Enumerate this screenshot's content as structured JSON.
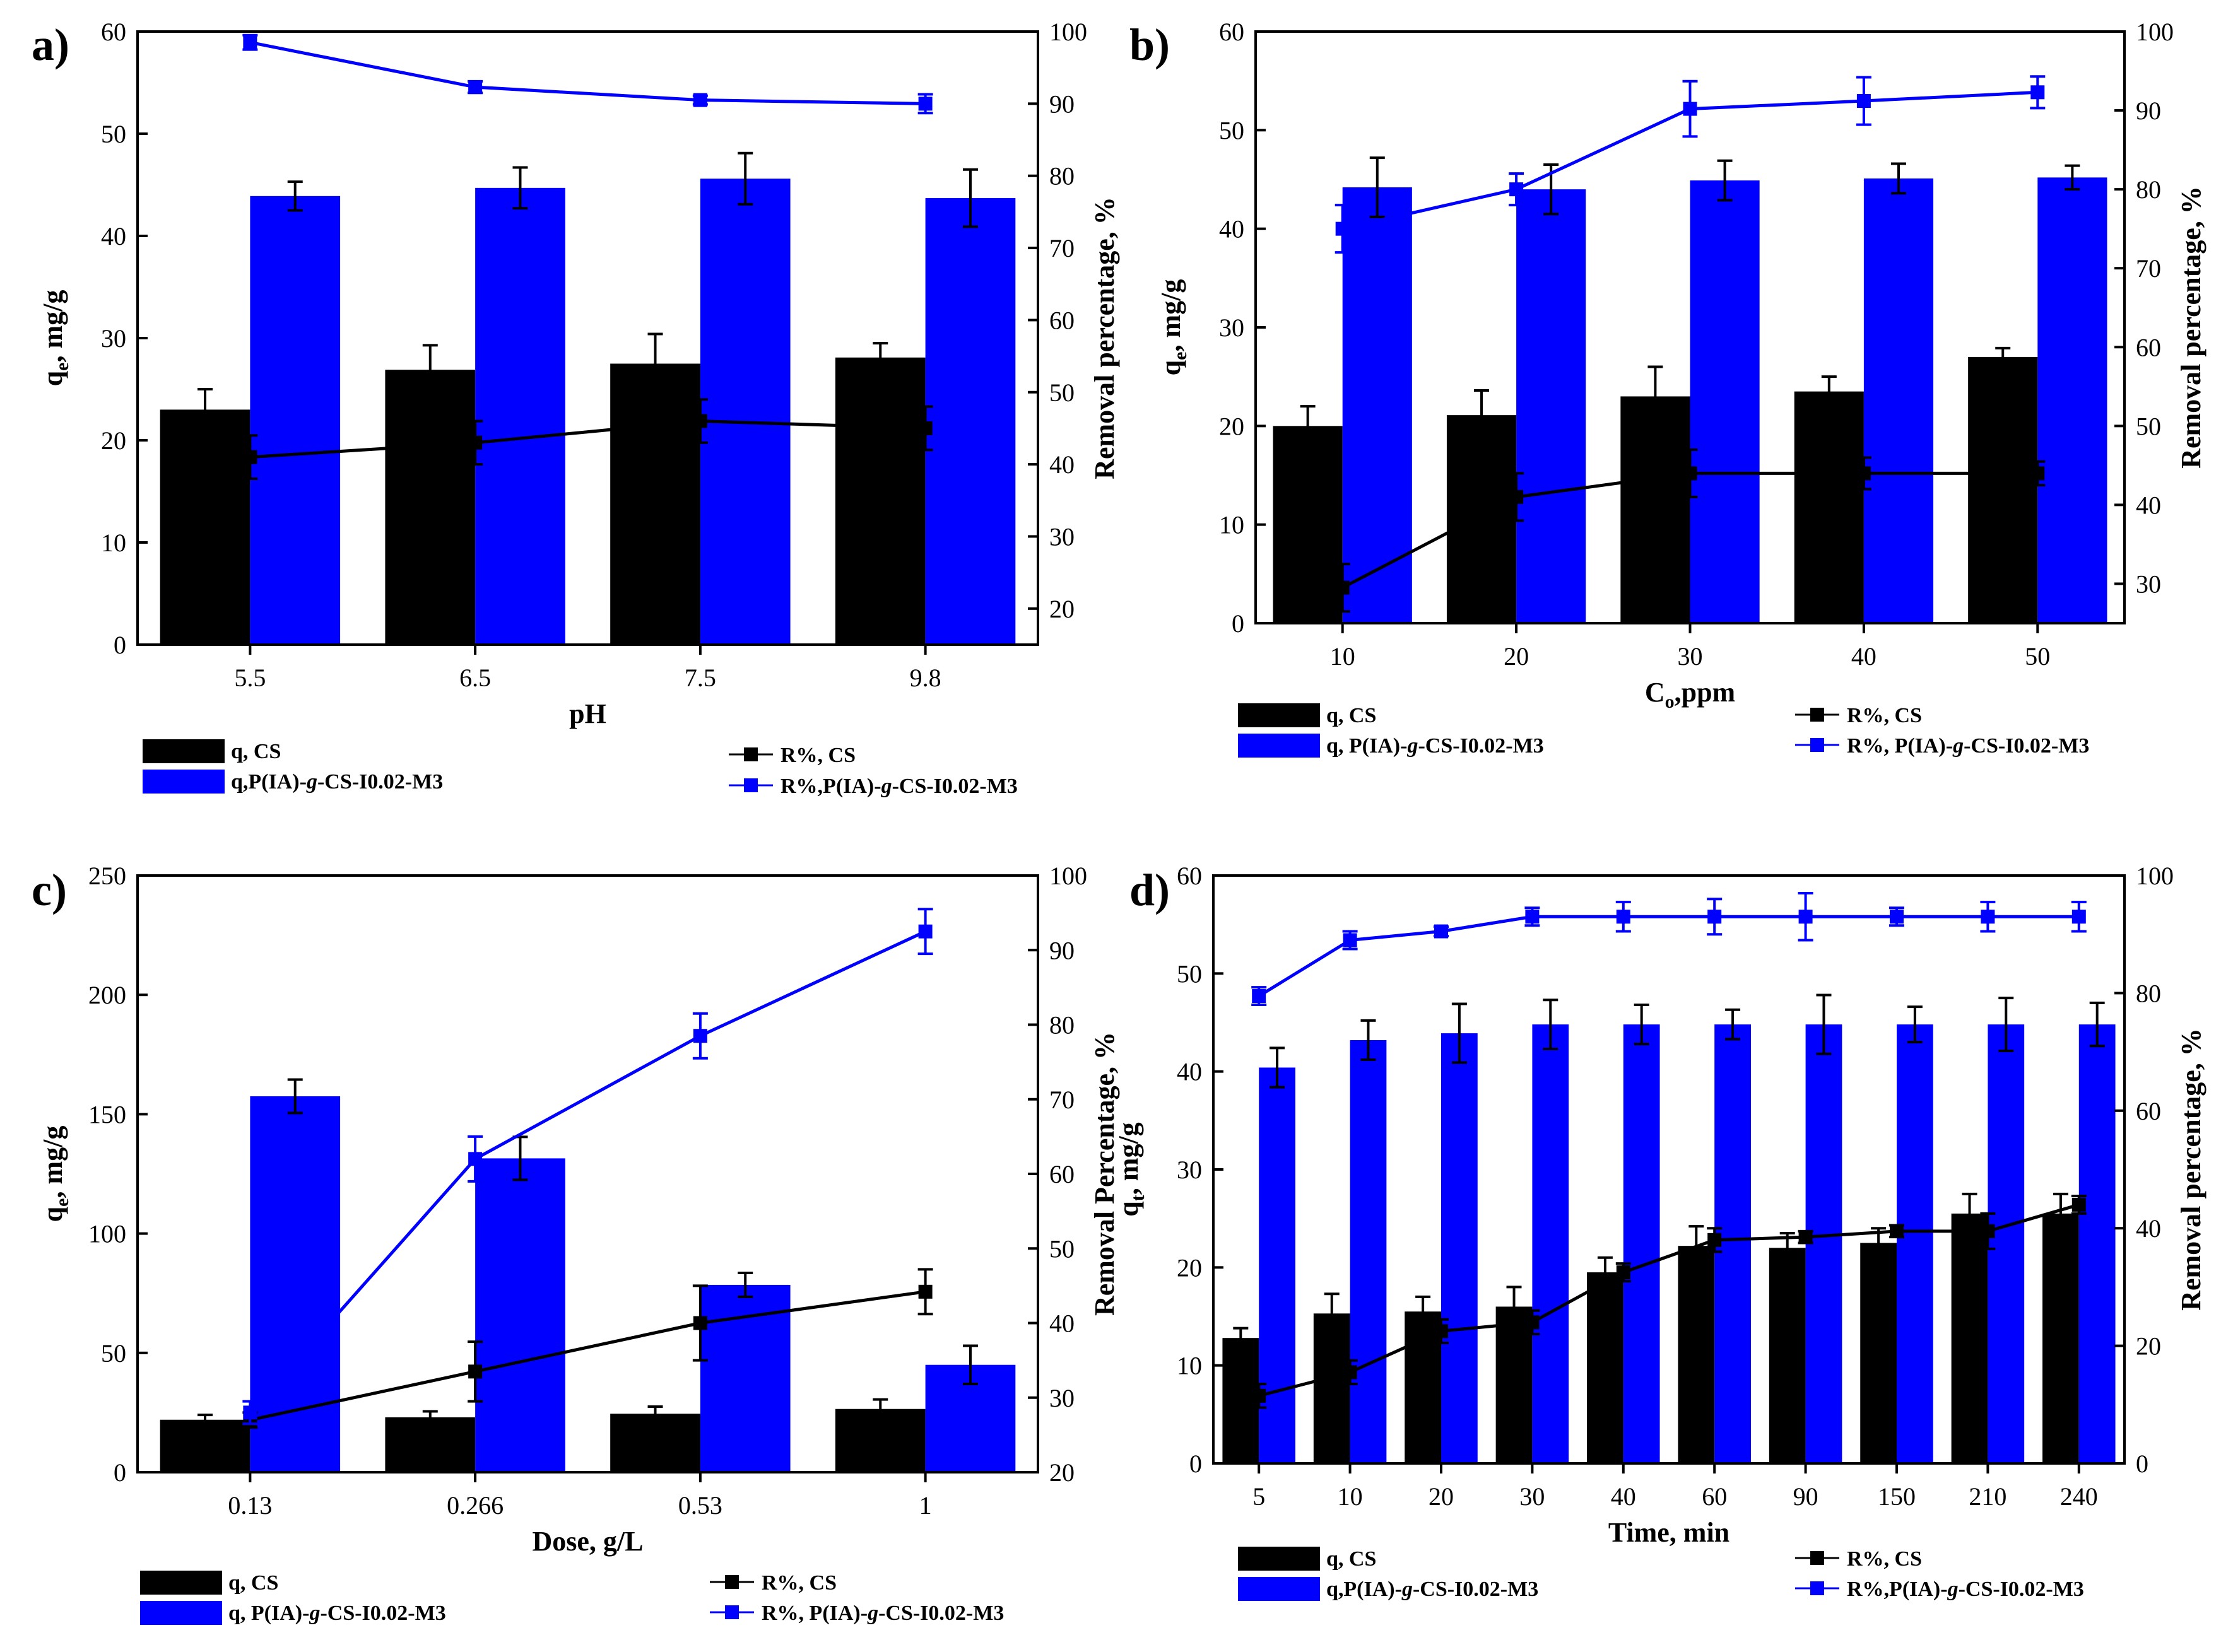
{
  "colors": {
    "cs": "#000000",
    "grafted": "#0000ff"
  },
  "legend_labels": {
    "q_cs": "q, CS",
    "q_grafted_prefix": "q, P(IA)-",
    "q_grafted_prefix_nospace": "q,P(IA)-",
    "r_cs": "R%, CS",
    "r_grafted_prefix": "R%, P(IA)-",
    "r_grafted_prefix_nospace": "R%,P(IA)-",
    "g_italic": "g",
    "grafted_suffix": "-CS-I0.02-M3"
  },
  "chart_data": [
    {
      "panel": "a)",
      "type": "bar+line",
      "xlabel": "pH",
      "ylabel_left": "q",
      "ylabel_left_sub": "e",
      "ylabel_left_tail": ", mg/g",
      "ylabel_right": "Removal percentage, %",
      "categories": [
        "5.5",
        "6.5",
        "7.5",
        "9.8"
      ],
      "yleft_lim": [
        0,
        60
      ],
      "yleft_ticks": [
        0,
        10,
        20,
        30,
        40,
        50,
        60
      ],
      "yright_lim": [
        15,
        100
      ],
      "yright_ticks": [
        20,
        30,
        40,
        50,
        60,
        70,
        80,
        90,
        100
      ],
      "bars": [
        {
          "name": "q, CS",
          "values": [
            23.0,
            26.9,
            27.5,
            28.1
          ],
          "errors": [
            2.0,
            2.4,
            2.9,
            1.4
          ]
        },
        {
          "name": "q,P(IA)-g-CS-I0.02-M3",
          "values": [
            43.9,
            44.7,
            45.6,
            43.7
          ],
          "errors": [
            1.4,
            2.0,
            2.5,
            2.8
          ]
        }
      ],
      "lines": [
        {
          "name": "R%, CS",
          "values": [
            41.0,
            43.0,
            46.0,
            45.0
          ],
          "errors": [
            3.0,
            3.0,
            3.0,
            3.0
          ]
        },
        {
          "name": "R%,P(IA)-g-CS-I0.02-M3",
          "values": [
            98.5,
            92.3,
            90.5,
            90.0
          ],
          "errors": [
            1.0,
            0.8,
            0.6,
            1.3
          ]
        }
      ]
    },
    {
      "panel": "b)",
      "type": "bar+line",
      "xlabel": "C",
      "xlabel_sub": "o",
      "xlabel_tail": ",ppm",
      "ylabel_left": "q",
      "ylabel_left_sub": "e",
      "ylabel_left_tail": ", mg/g",
      "ylabel_right": "Removal percentage, %",
      "categories": [
        "10",
        "20",
        "30",
        "40",
        "50"
      ],
      "yleft_lim": [
        0,
        60
      ],
      "yleft_ticks": [
        0,
        10,
        20,
        30,
        40,
        50,
        60
      ],
      "yright_lim": [
        25,
        100
      ],
      "yright_ticks": [
        30,
        40,
        50,
        60,
        70,
        80,
        90,
        100
      ],
      "bars": [
        {
          "name": "q, CS",
          "values": [
            20.0,
            21.1,
            23.0,
            23.5,
            27.0
          ],
          "errors": [
            2.0,
            2.5,
            3.0,
            1.5,
            0.9
          ]
        },
        {
          "name": "q, P(IA)-g-CS-I0.02-M3",
          "values": [
            44.2,
            44.0,
            44.9,
            45.1,
            45.2
          ],
          "errors": [
            3.0,
            2.5,
            2.0,
            1.5,
            1.2
          ]
        }
      ],
      "lines": [
        {
          "name": "R%, CS",
          "values": [
            29.5,
            41.0,
            44.0,
            44.0,
            44.0
          ],
          "errors": [
            3.0,
            3.0,
            3.0,
            2.0,
            1.5
          ]
        },
        {
          "name": "R%, P(IA)-g-CS-I0.02-M3",
          "values": [
            75.0,
            80.0,
            90.2,
            91.2,
            92.3
          ],
          "errors": [
            3.0,
            2.0,
            3.5,
            3.0,
            2.0
          ]
        }
      ]
    },
    {
      "panel": "c)",
      "type": "bar+line",
      "xlabel": "Dose, g/L",
      "ylabel_left": "q",
      "ylabel_left_sub": "e",
      "ylabel_left_tail": ", mg/g",
      "ylabel_right": "Removal Percentage, %",
      "categories": [
        "0.13",
        "0.266",
        "0.53",
        "1"
      ],
      "yleft_lim": [
        0,
        250
      ],
      "yleft_ticks": [
        0,
        50,
        100,
        150,
        200,
        250
      ],
      "yright_lim": [
        20,
        100
      ],
      "yright_ticks": [
        20,
        30,
        40,
        50,
        60,
        70,
        80,
        90,
        100
      ],
      "bars": [
        {
          "name": "q, CS",
          "values": [
            22.0,
            23.0,
            24.5,
            26.5
          ],
          "errors": [
            2.0,
            2.5,
            3.0,
            4.0
          ]
        },
        {
          "name": "q, P(IA)-g-CS-I0.02-M3",
          "values": [
            157.5,
            131.5,
            78.5,
            45.0
          ],
          "errors": [
            7.0,
            9.0,
            5.0,
            8.0
          ]
        }
      ],
      "lines": [
        {
          "name": "R%, CS",
          "values": [
            27.0,
            33.5,
            40.0,
            44.2
          ],
          "errors": [
            1.0,
            4.0,
            5.0,
            3.0
          ]
        },
        {
          "name": "R%, P(IA)-g-CS-I0.02-M3",
          "values": [
            28.0,
            62.0,
            78.5,
            92.5
          ],
          "errors": [
            1.5,
            3.0,
            3.0,
            3.0
          ]
        }
      ]
    },
    {
      "panel": "d)",
      "type": "bar+line",
      "xlabel": "Time, min",
      "ylabel_left": "q",
      "ylabel_left_sub": "t",
      "ylabel_left_tail": ", mg/g",
      "ylabel_right": "Removal percentage, %",
      "categories": [
        "5",
        "10",
        "20",
        "30",
        "40",
        "60",
        "90",
        "150",
        "210",
        "240"
      ],
      "yleft_lim": [
        0,
        60
      ],
      "yleft_ticks": [
        0,
        10,
        20,
        30,
        40,
        50,
        60
      ],
      "yright_lim": [
        0,
        100
      ],
      "yright_ticks": [
        0,
        20,
        40,
        60,
        80,
        100
      ],
      "bars": [
        {
          "name": "q, CS",
          "values": [
            12.8,
            15.3,
            15.5,
            16.0,
            19.5,
            22.2,
            22.0,
            22.5,
            25.5,
            25.5
          ],
          "errors": [
            1.0,
            2.0,
            1.5,
            2.0,
            1.5,
            2.0,
            1.5,
            1.5,
            2.0,
            2.0
          ]
        },
        {
          "name": "q,P(IA)-g-CS-I0.02-M3",
          "values": [
            40.4,
            43.2,
            43.9,
            44.8,
            44.8,
            44.8,
            44.8,
            44.8,
            44.8,
            44.8
          ],
          "errors": [
            2.0,
            2.0,
            3.0,
            2.5,
            2.0,
            1.5,
            3.0,
            1.8,
            2.7,
            2.2
          ]
        }
      ],
      "lines": [
        {
          "name": "R%, CS",
          "values": [
            11.5,
            15.5,
            22.5,
            24.0,
            32.5,
            38.0,
            38.5,
            39.5,
            39.5,
            44.0
          ],
          "errors": [
            2.0,
            2.0,
            2.0,
            2.0,
            1.5,
            2.0,
            1.0,
            1.0,
            3.0,
            1.5
          ]
        },
        {
          "name": "R%,P(IA)-g-CS-I0.02-M3",
          "values": [
            79.5,
            89.0,
            90.5,
            93.0,
            93.0,
            93.0,
            93.0,
            93.0,
            93.0,
            93.0
          ],
          "errors": [
            1.5,
            1.5,
            0.8,
            1.5,
            2.5,
            3.0,
            4.0,
            1.5,
            2.5,
            2.5
          ]
        }
      ]
    }
  ]
}
